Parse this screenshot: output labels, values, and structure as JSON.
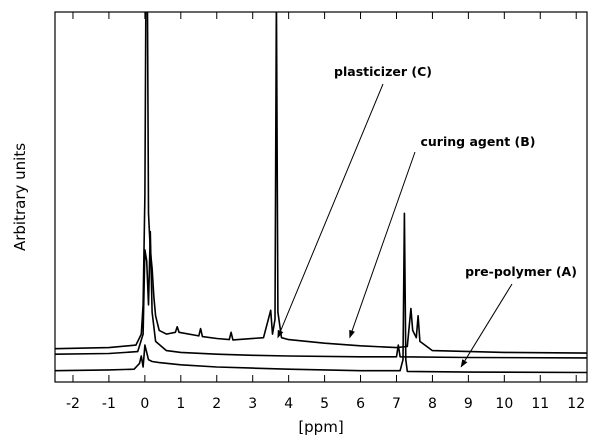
{
  "chart_data": {
    "type": "line",
    "title": "",
    "xlabel": "[ppm]",
    "ylabel": "Arbitrary units",
    "xlim": [
      -2.5,
      12.3
    ],
    "ylim": [
      0,
      1
    ],
    "xticks": [
      -2,
      -1,
      0,
      1,
      2,
      3,
      4,
      5,
      6,
      7,
      8,
      9,
      10,
      11,
      12
    ],
    "xtick_labels": [
      "-2",
      "-1",
      "0",
      "1",
      "2",
      "3",
      "4",
      "5",
      "6",
      "7",
      "8",
      "9",
      "10",
      "11",
      "12"
    ],
    "yticks_shown": false,
    "grid": false,
    "legend": "none",
    "series": [
      {
        "name": "plasticizer (C)",
        "color": "#000000",
        "points": [
          [
            -2.5,
            0.08
          ],
          [
            -1.0,
            0.083
          ],
          [
            -0.25,
            0.09
          ],
          [
            -0.1,
            0.12
          ],
          [
            -0.05,
            0.2
          ],
          [
            0.0,
            0.5
          ],
          [
            0.03,
            1.05
          ],
          [
            0.07,
            1.05
          ],
          [
            0.1,
            0.45
          ],
          [
            0.15,
            0.35
          ],
          [
            0.2,
            0.3
          ],
          [
            0.25,
            0.22
          ],
          [
            0.3,
            0.17
          ],
          [
            0.4,
            0.13
          ],
          [
            0.6,
            0.12
          ],
          [
            0.85,
            0.125
          ],
          [
            0.9,
            0.14
          ],
          [
            0.95,
            0.125
          ],
          [
            1.5,
            0.115
          ],
          [
            1.55,
            0.135
          ],
          [
            1.6,
            0.113
          ],
          [
            2.0,
            0.108
          ],
          [
            2.35,
            0.105
          ],
          [
            2.4,
            0.125
          ],
          [
            2.45,
            0.104
          ],
          [
            3.3,
            0.11
          ],
          [
            3.5,
            0.185
          ],
          [
            3.55,
            0.12
          ],
          [
            3.62,
            0.16
          ],
          [
            3.66,
            1.05
          ],
          [
            3.7,
            0.18
          ],
          [
            3.8,
            0.11
          ],
          [
            4.0,
            0.105
          ],
          [
            5.0,
            0.095
          ],
          [
            6.0,
            0.088
          ],
          [
            7.0,
            0.083
          ],
          [
            7.3,
            0.086
          ],
          [
            7.4,
            0.19
          ],
          [
            7.45,
            0.13
          ],
          [
            7.55,
            0.11
          ],
          [
            7.6,
            0.17
          ],
          [
            7.65,
            0.1
          ],
          [
            8.0,
            0.075
          ],
          [
            10.0,
            0.07
          ],
          [
            12.3,
            0.068
          ]
        ]
      },
      {
        "name": "curing agent (B)",
        "color": "#000000",
        "points": [
          [
            -2.5,
            0.065
          ],
          [
            -1.0,
            0.067
          ],
          [
            -0.2,
            0.072
          ],
          [
            -0.05,
            0.12
          ],
          [
            0.0,
            0.35
          ],
          [
            0.05,
            0.32
          ],
          [
            0.1,
            0.2
          ],
          [
            0.15,
            0.4
          ],
          [
            0.2,
            0.18
          ],
          [
            0.3,
            0.1
          ],
          [
            0.6,
            0.075
          ],
          [
            1.0,
            0.07
          ],
          [
            2.0,
            0.065
          ],
          [
            3.0,
            0.062
          ],
          [
            4.0,
            0.06
          ],
          [
            6.0,
            0.058
          ],
          [
            7.0,
            0.058
          ],
          [
            7.05,
            0.09
          ],
          [
            7.1,
            0.058
          ],
          [
            9.0,
            0.056
          ],
          [
            12.3,
            0.055
          ]
        ]
      },
      {
        "name": "pre-polymer (A)",
        "color": "#000000",
        "points": [
          [
            -2.5,
            0.02
          ],
          [
            -1.0,
            0.022
          ],
          [
            -0.3,
            0.024
          ],
          [
            -0.15,
            0.04
          ],
          [
            -0.1,
            0.06
          ],
          [
            -0.05,
            0.03
          ],
          [
            0.0,
            0.09
          ],
          [
            0.05,
            0.07
          ],
          [
            0.1,
            0.05
          ],
          [
            0.2,
            0.045
          ],
          [
            0.4,
            0.042
          ],
          [
            1.0,
            0.036
          ],
          [
            2.0,
            0.03
          ],
          [
            3.0,
            0.027
          ],
          [
            4.0,
            0.024
          ],
          [
            5.0,
            0.022
          ],
          [
            6.0,
            0.02
          ],
          [
            7.1,
            0.02
          ],
          [
            7.18,
            0.05
          ],
          [
            7.22,
            0.45
          ],
          [
            7.26,
            0.05
          ],
          [
            7.3,
            0.018
          ],
          [
            9.0,
            0.016
          ],
          [
            12.3,
            0.015
          ]
        ]
      }
    ],
    "annotations": [
      {
        "text": "plasticizer (C)",
        "x": 3.7,
        "y": 0.1
      },
      {
        "text": "curing agent (B)",
        "x": 5.7,
        "y": 0.1
      },
      {
        "text": "pre-polymer (A)",
        "x": 8.8,
        "y": 0.02
      }
    ]
  }
}
